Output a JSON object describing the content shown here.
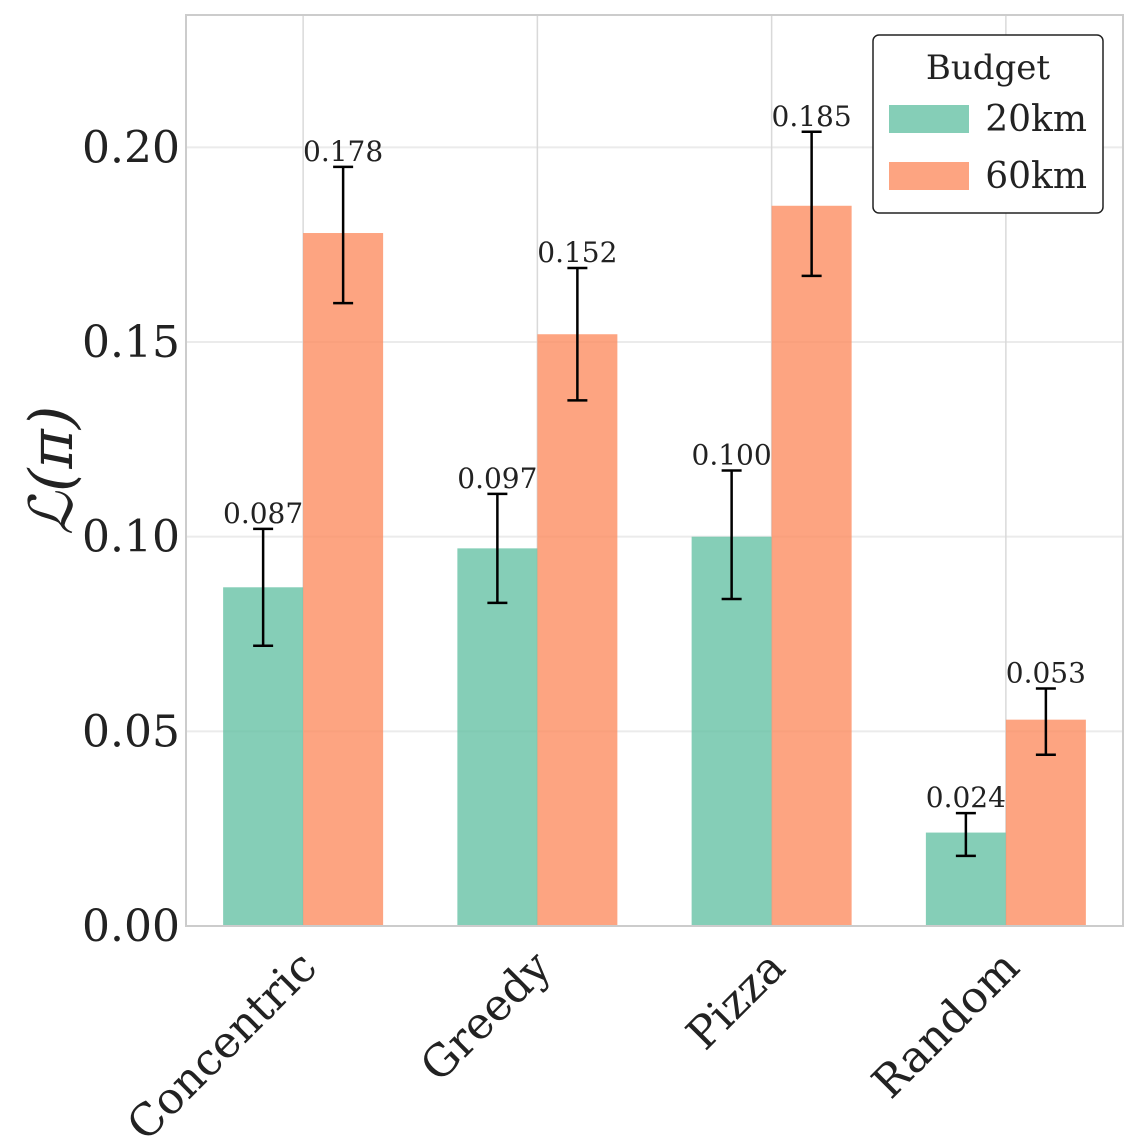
{
  "chart_data": {
    "type": "bar",
    "categories": [
      "Concentric",
      "Greedy",
      "Pizza",
      "Random"
    ],
    "series": [
      {
        "name": "20km",
        "color": "#66c2a5",
        "values": [
          0.087,
          0.097,
          0.1,
          0.024
        ],
        "error_low": [
          0.072,
          0.083,
          0.084,
          0.018
        ],
        "error_high": [
          0.102,
          0.111,
          0.117,
          0.029
        ],
        "labels": [
          "0.087",
          "0.097",
          "0.100",
          "0.024"
        ]
      },
      {
        "name": "60km",
        "color": "#fc8d62",
        "values": [
          0.178,
          0.152,
          0.185,
          0.053
        ],
        "error_low": [
          0.16,
          0.135,
          0.167,
          0.044
        ],
        "error_high": [
          0.195,
          0.169,
          0.204,
          0.061
        ],
        "labels": [
          "0.178",
          "0.152",
          "0.185",
          "0.053"
        ]
      }
    ],
    "ylabel": "ℒ(π)",
    "xlabel": "",
    "ylim": [
      0,
      0.234
    ],
    "yticks": [
      "0.00",
      "0.05",
      "0.10",
      "0.15",
      "0.20"
    ],
    "ytick_values": [
      0,
      0.05,
      0.1,
      0.15,
      0.2
    ],
    "grid": true,
    "legend": {
      "title": "Budget",
      "placement": "top-right"
    }
  }
}
